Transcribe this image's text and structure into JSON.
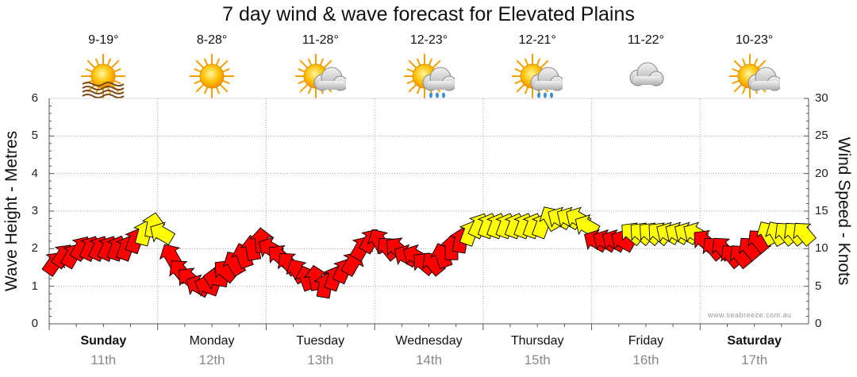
{
  "chart_data": {
    "type": "wind_wave_forecast",
    "title": "7 day wind & wave forecast for Elevated Plains",
    "ylabel_left": "Wave Height - Metres",
    "ylabel_right": "Wind Speed - Knots",
    "ylim_left": [
      0,
      6
    ],
    "ylim_right": [
      0,
      30
    ],
    "yticks_left": [
      "0",
      "1",
      "2",
      "3",
      "4",
      "5",
      "6"
    ],
    "yticks_right": [
      "0",
      "5",
      "10",
      "15",
      "20",
      "25",
      "30"
    ],
    "days": [
      {
        "name": "Sunday",
        "date": "11th",
        "bold": true
      },
      {
        "name": "Monday",
        "date": "12th",
        "bold": false
      },
      {
        "name": "Tuesday",
        "date": "13th",
        "bold": false
      },
      {
        "name": "Wednesday",
        "date": "14th",
        "bold": false
      },
      {
        "name": "Thursday",
        "date": "15th",
        "bold": false
      },
      {
        "name": "Friday",
        "date": "16th",
        "bold": false
      },
      {
        "name": "Saturday",
        "date": "17th",
        "bold": true
      }
    ],
    "weather": [
      {
        "temp": "9-19°",
        "icon": "sun-haze-icon"
      },
      {
        "temp": "8-28°",
        "icon": "sun-icon"
      },
      {
        "temp": "11-28°",
        "icon": "sun-cloud-icon"
      },
      {
        "temp": "12-23°",
        "icon": "sun-cloud-rain-icon"
      },
      {
        "temp": "12-21°",
        "icon": "sun-cloud-rain-icon"
      },
      {
        "temp": "11-22°",
        "icon": "cloud-icon"
      },
      {
        "temp": "10-23°",
        "icon": "sun-cloud-icon"
      }
    ],
    "wind_knots_by_day": [
      [
        8,
        9,
        9,
        10,
        10,
        10,
        10,
        10,
        10,
        11,
        12,
        13
      ],
      [
        12,
        9,
        7,
        6,
        5,
        5,
        6,
        7,
        8,
        9,
        10,
        11
      ],
      [
        10,
        9,
        8,
        7,
        6,
        6,
        5,
        6,
        7,
        8,
        10,
        11
      ],
      [
        11,
        10,
        10,
        9,
        9,
        8,
        8,
        9,
        10,
        11,
        12,
        13
      ],
      [
        13,
        13,
        13,
        13,
        13,
        13,
        13,
        14,
        14,
        14,
        14,
        13
      ],
      [
        11,
        11,
        11,
        11,
        12,
        12,
        12,
        12,
        12,
        12,
        12,
        12
      ],
      [
        11,
        10,
        10,
        9,
        9,
        10,
        11,
        12,
        12,
        12,
        12,
        12
      ]
    ],
    "colors": {
      "strong": "#ff0000",
      "moderate": "#ffff00",
      "grid": "#aaaaaa"
    },
    "moderate_threshold_knots": 12,
    "credit": "www.seabreeze.com.au"
  }
}
